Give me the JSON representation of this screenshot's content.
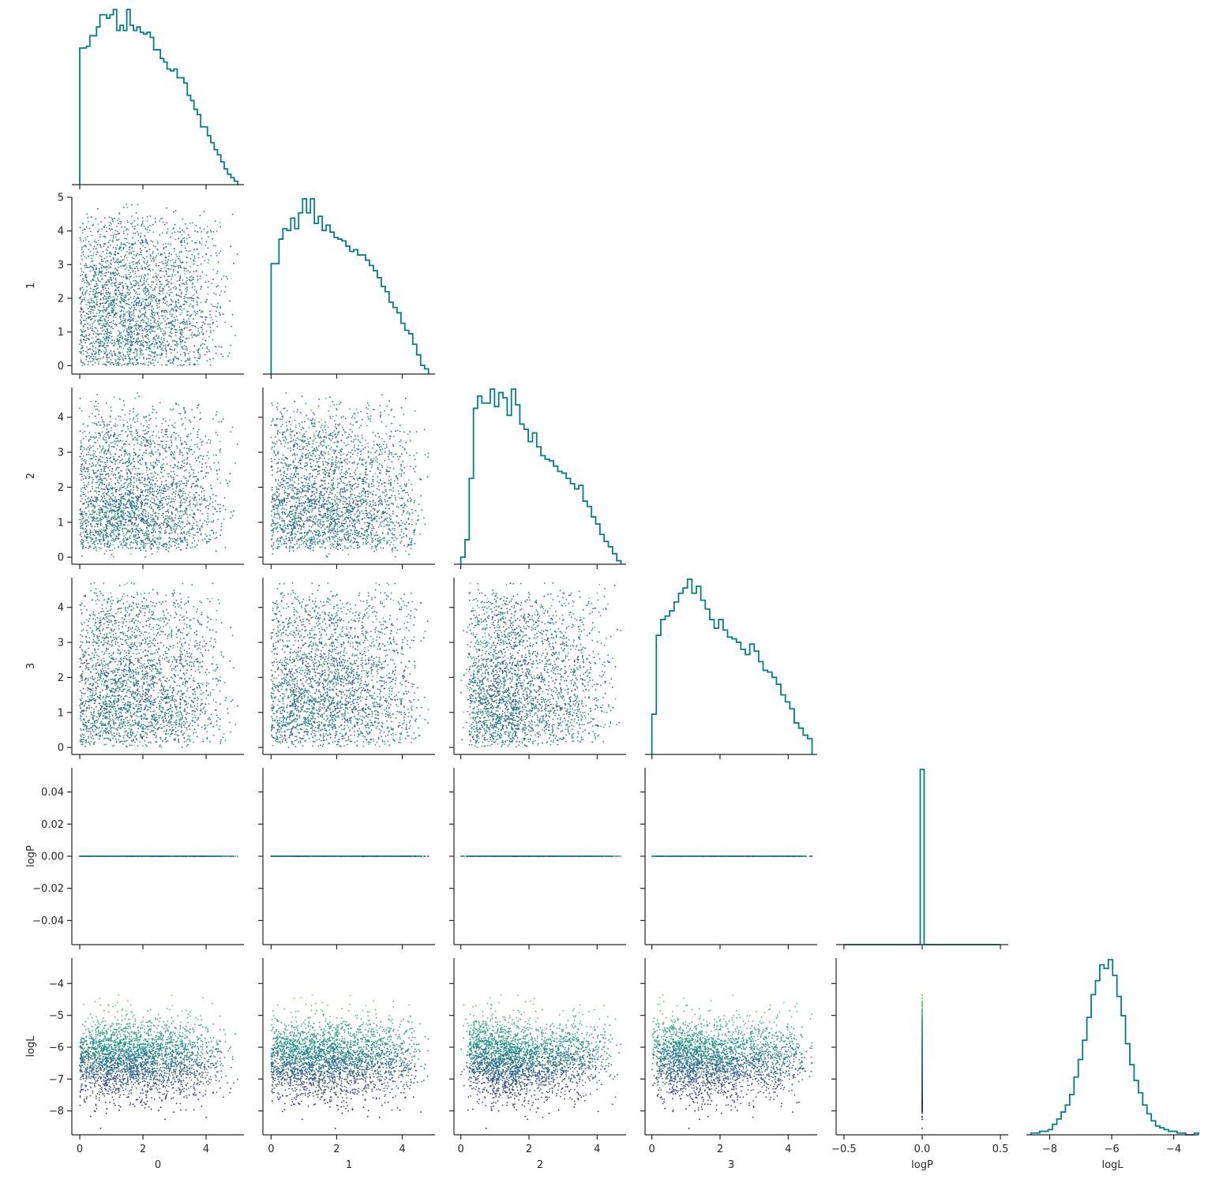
{
  "chart_data": {
    "type": "corner",
    "variables": [
      {
        "name": "0",
        "label": "0",
        "lim": [
          -0.25,
          5.2
        ],
        "ticks": [
          0,
          2,
          4
        ],
        "tick_labels": [
          "0",
          "2",
          "4"
        ]
      },
      {
        "name": "1",
        "label": "1",
        "lim": [
          -0.25,
          5.0
        ],
        "ticks": [
          0,
          1,
          2,
          3,
          4,
          5
        ],
        "tick_labels": [
          "0",
          "1",
          "2",
          "3",
          "4",
          "5"
        ],
        "xticks": [
          0,
          2,
          4
        ],
        "xtick_labels": [
          "0",
          "2",
          "4"
        ]
      },
      {
        "name": "2",
        "label": "2",
        "lim": [
          -0.2,
          4.85
        ],
        "ticks": [
          0,
          1,
          2,
          3,
          4
        ],
        "tick_labels": [
          "0",
          "1",
          "2",
          "3",
          "4"
        ],
        "xticks": [
          0,
          2,
          4
        ],
        "xtick_labels": [
          "0",
          "2",
          "4"
        ]
      },
      {
        "name": "3",
        "label": "3",
        "lim": [
          -0.2,
          4.85
        ],
        "ticks": [
          0,
          1,
          2,
          3,
          4
        ],
        "tick_labels": [
          "0",
          "1",
          "2",
          "3",
          "4"
        ],
        "xticks": [
          0,
          2,
          4
        ],
        "xtick_labels": [
          "0",
          "2",
          "4"
        ]
      },
      {
        "name": "logP",
        "label": "logP",
        "lim": [
          -0.055,
          0.055
        ],
        "ticks": [
          -0.04,
          -0.02,
          0.0,
          0.02,
          0.04
        ],
        "tick_labels": [
          "−0.04",
          "−0.02",
          "0.00",
          "0.02",
          "0.04"
        ],
        "xlim": [
          -0.55,
          0.55
        ],
        "xticks": [
          -0.5,
          0.0,
          0.5
        ],
        "xtick_labels": [
          "−0.5",
          "0.0",
          "0.5"
        ]
      },
      {
        "name": "logL",
        "label": "logL",
        "lim": [
          -8.75,
          -3.2
        ],
        "ticks": [
          -8,
          -7,
          -6,
          -5,
          -4
        ],
        "tick_labels": [
          "−8",
          "−7",
          "−6",
          "−5",
          "−4"
        ],
        "xticks": [
          -8,
          -6,
          -4
        ],
        "xtick_labels": [
          "−8",
          "−6",
          "−4"
        ]
      }
    ],
    "scatter_color_by": "logL",
    "colormap": [
      "#440154",
      "#3b528b",
      "#21918c",
      "#5ec962",
      "#fde725"
    ],
    "histogram_color": "#008080",
    "point_count": 2600,
    "histograms": {
      "0": {
        "range": [
          0,
          5.0
        ],
        "heights": [
          78,
          78,
          79,
          85,
          85,
          90,
          97,
          97,
          95,
          97,
          100,
          88,
          91,
          88,
          100,
          91,
          88,
          90,
          87,
          86,
          87,
          84,
          77,
          77,
          72,
          70,
          66,
          65,
          66,
          61,
          61,
          58,
          51,
          48,
          43,
          40,
          33,
          33,
          28,
          24,
          20,
          17,
          13,
          9,
          6,
          4,
          2
        ]
      },
      "1": {
        "range": [
          0,
          4.8
        ],
        "heights": [
          63,
          63,
          77,
          83,
          82,
          89,
          83,
          92,
          100,
          92,
          100,
          86,
          90,
          82,
          85,
          81,
          78,
          77,
          76,
          73,
          70,
          71,
          68,
          68,
          65,
          62,
          59,
          55,
          50,
          47,
          41,
          38,
          35,
          29,
          25,
          23,
          17,
          11,
          5,
          3
        ]
      },
      "2": {
        "range": [
          0,
          4.7
        ],
        "heights": [
          4,
          14,
          49,
          89,
          96,
          92,
          92,
          100,
          90,
          98,
          95,
          85,
          100,
          91,
          80,
          77,
          70,
          75,
          67,
          62,
          60,
          59,
          56,
          53,
          52,
          49,
          46,
          43,
          45,
          36,
          33,
          27,
          23,
          17,
          13,
          10,
          6,
          2
        ]
      },
      "3": {
        "range": [
          0,
          4.7
        ],
        "heights": [
          23,
          68,
          77,
          79,
          82,
          87,
          92,
          95,
          100,
          92,
          96,
          88,
          83,
          77,
          72,
          77,
          71,
          67,
          66,
          64,
          60,
          57,
          63,
          59,
          53,
          48,
          47,
          44,
          40,
          34,
          30,
          26,
          18,
          15,
          11,
          9
        ]
      },
      "logP": {
        "range": [
          -0.0125,
          0.0125
        ],
        "heights": [
          100
        ],
        "flat_range": [
          -0.5,
          0.5
        ]
      },
      "logL": {
        "range": [
          -8.6,
          -3.2
        ],
        "heights": [
          1,
          1,
          2,
          2,
          3,
          6,
          9,
          13,
          17,
          23,
          33,
          43,
          54,
          67,
          80,
          88,
          97,
          95,
          100,
          91,
          79,
          68,
          52,
          40,
          31,
          24,
          17,
          12,
          8,
          5,
          4,
          3,
          2,
          2,
          1,
          1,
          0,
          0,
          1
        ]
      }
    }
  }
}
